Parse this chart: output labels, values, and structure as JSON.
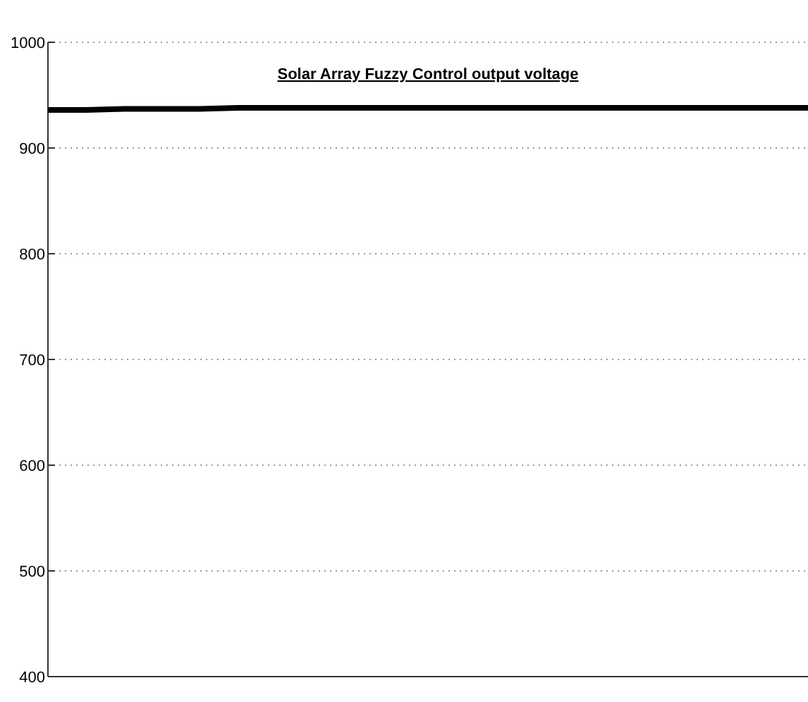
{
  "chart_data": {
    "type": "line",
    "title": "Solar Array Fuzzy Control output voltage",
    "categories": [
      null,
      null,
      null,
      null,
      null,
      null,
      null,
      null,
      null,
      null,
      null,
      null,
      null,
      null,
      null,
      null,
      null,
      null,
      null,
      null,
      null
    ],
    "series": [
      {
        "color": "#000000",
        "values": [
          936,
          936,
          937,
          937,
          937,
          938,
          938,
          938,
          938,
          938,
          938,
          938,
          938,
          938,
          938,
          938,
          938,
          938,
          938,
          938,
          938
        ]
      }
    ],
    "ylim": [
      400,
      1000
    ],
    "yticks": [
      400,
      500,
      600,
      700,
      800,
      900,
      1000
    ],
    "grid": "y",
    "marker": "none",
    "line_style": "solid"
  }
}
